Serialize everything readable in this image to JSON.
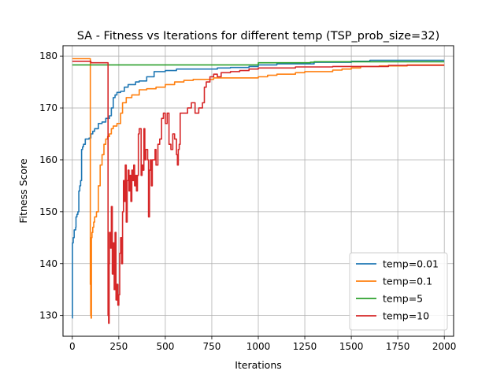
{
  "chart_data": {
    "type": "line",
    "title": "SA - Fitness vs Iterations for different temp (TSP_prob_size=32)",
    "xlabel": "Iterations",
    "ylabel": "Fitness Score",
    "xlim": [
      -50,
      2050
    ],
    "ylim": [
      126,
      182
    ],
    "xticks": [
      0,
      250,
      500,
      750,
      1000,
      1250,
      1500,
      1750,
      2000
    ],
    "yticks": [
      130,
      140,
      150,
      160,
      170,
      180
    ],
    "grid": true,
    "legend_position": "lower-right",
    "series": [
      {
        "name": "temp=0.01",
        "color": "#1f77b4",
        "points": [
          [
            0,
            129.5
          ],
          [
            1,
            144
          ],
          [
            5,
            145
          ],
          [
            10,
            146.5
          ],
          [
            18,
            147
          ],
          [
            20,
            149
          ],
          [
            25,
            149.5
          ],
          [
            30,
            150
          ],
          [
            35,
            154
          ],
          [
            40,
            155
          ],
          [
            45,
            156
          ],
          [
            50,
            162
          ],
          [
            55,
            162.5
          ],
          [
            60,
            163
          ],
          [
            70,
            164
          ],
          [
            90,
            164.2
          ],
          [
            100,
            165
          ],
          [
            110,
            165.5
          ],
          [
            120,
            166
          ],
          [
            140,
            167
          ],
          [
            160,
            167.3
          ],
          [
            180,
            168
          ],
          [
            200,
            168.5
          ],
          [
            210,
            170
          ],
          [
            220,
            172
          ],
          [
            230,
            172.5
          ],
          [
            240,
            173
          ],
          [
            260,
            173.2
          ],
          [
            280,
            174
          ],
          [
            300,
            174.5
          ],
          [
            340,
            175
          ],
          [
            360,
            175.2
          ],
          [
            400,
            176
          ],
          [
            440,
            177
          ],
          [
            500,
            177.2
          ],
          [
            560,
            177.5
          ],
          [
            650,
            177.5
          ],
          [
            760,
            177.5
          ],
          [
            780,
            177.7
          ],
          [
            850,
            177.8
          ],
          [
            950,
            178
          ],
          [
            1000,
            178.3
          ],
          [
            1100,
            178.5
          ],
          [
            1200,
            178.5
          ],
          [
            1300,
            178.8
          ],
          [
            1400,
            178.8
          ],
          [
            1500,
            179
          ],
          [
            1600,
            179.2
          ],
          [
            1700,
            179.2
          ],
          [
            2000,
            179.2
          ]
        ]
      },
      {
        "name": "temp=0.1",
        "color": "#ff7f0e",
        "points": [
          [
            0,
            179.5
          ],
          [
            95,
            179.5
          ],
          [
            97,
            136
          ],
          [
            99,
            130
          ],
          [
            101,
            129.5
          ],
          [
            103,
            145
          ],
          [
            106,
            146
          ],
          [
            110,
            147
          ],
          [
            115,
            148
          ],
          [
            120,
            149
          ],
          [
            130,
            150
          ],
          [
            140,
            155
          ],
          [
            150,
            159
          ],
          [
            160,
            161
          ],
          [
            170,
            163
          ],
          [
            180,
            164
          ],
          [
            190,
            164.5
          ],
          [
            200,
            165
          ],
          [
            210,
            166
          ],
          [
            220,
            166.5
          ],
          [
            240,
            167
          ],
          [
            260,
            169
          ],
          [
            270,
            171
          ],
          [
            290,
            172
          ],
          [
            320,
            172.5
          ],
          [
            360,
            173.5
          ],
          [
            400,
            173.7
          ],
          [
            450,
            174
          ],
          [
            500,
            174.5
          ],
          [
            550,
            175
          ],
          [
            600,
            175.3
          ],
          [
            650,
            175.5
          ],
          [
            760,
            175.8
          ],
          [
            1000,
            176
          ],
          [
            1050,
            176.3
          ],
          [
            1100,
            176.5
          ],
          [
            1200,
            176.8
          ],
          [
            1250,
            177
          ],
          [
            1300,
            177
          ],
          [
            1400,
            177.3
          ],
          [
            1450,
            177.5
          ],
          [
            1500,
            177.7
          ],
          [
            1550,
            178
          ],
          [
            1650,
            178.1
          ],
          [
            1800,
            178.3
          ],
          [
            2000,
            178.3
          ]
        ]
      },
      {
        "name": "temp=5",
        "color": "#2ca02c",
        "points": [
          [
            0,
            178.3
          ],
          [
            400,
            178.3
          ],
          [
            700,
            178.3
          ],
          [
            980,
            178.3
          ],
          [
            1000,
            178.7
          ],
          [
            1200,
            178.7
          ],
          [
            1280,
            178.8
          ],
          [
            1300,
            178.9
          ],
          [
            1500,
            178.9
          ],
          [
            2000,
            178.9
          ]
        ]
      },
      {
        "name": "temp=10",
        "color": "#d62728",
        "points": [
          [
            0,
            179
          ],
          [
            95,
            179
          ],
          [
            100,
            178.7
          ],
          [
            180,
            178.7
          ],
          [
            190,
            178.7
          ],
          [
            192,
            130
          ],
          [
            195,
            128.5
          ],
          [
            198,
            140
          ],
          [
            200,
            146
          ],
          [
            205,
            143
          ],
          [
            210,
            151
          ],
          [
            215,
            138
          ],
          [
            220,
            144
          ],
          [
            225,
            135
          ],
          [
            230,
            146
          ],
          [
            235,
            133
          ],
          [
            240,
            136
          ],
          [
            245,
            132
          ],
          [
            250,
            134
          ],
          [
            255,
            142
          ],
          [
            260,
            145
          ],
          [
            265,
            140
          ],
          [
            270,
            150
          ],
          [
            275,
            156
          ],
          [
            280,
            152
          ],
          [
            285,
            159
          ],
          [
            290,
            148
          ],
          [
            295,
            156
          ],
          [
            300,
            158
          ],
          [
            305,
            154
          ],
          [
            310,
            157
          ],
          [
            315,
            152
          ],
          [
            320,
            158
          ],
          [
            325,
            156
          ],
          [
            330,
            159
          ],
          [
            335,
            155
          ],
          [
            340,
            157
          ],
          [
            345,
            154
          ],
          [
            350,
            157
          ],
          [
            355,
            165
          ],
          [
            360,
            166
          ],
          [
            365,
            166
          ],
          [
            370,
            157
          ],
          [
            375,
            159
          ],
          [
            380,
            158
          ],
          [
            385,
            166
          ],
          [
            390,
            160
          ],
          [
            395,
            162
          ],
          [
            400,
            162
          ],
          [
            405,
            160
          ],
          [
            410,
            149
          ],
          [
            415,
            158
          ],
          [
            420,
            160
          ],
          [
            425,
            155
          ],
          [
            430,
            160
          ],
          [
            440,
            160
          ],
          [
            445,
            162
          ],
          [
            450,
            159
          ],
          [
            460,
            163
          ],
          [
            470,
            164
          ],
          [
            480,
            168
          ],
          [
            490,
            169
          ],
          [
            500,
            167
          ],
          [
            510,
            169
          ],
          [
            520,
            163
          ],
          [
            530,
            162
          ],
          [
            540,
            165
          ],
          [
            550,
            164
          ],
          [
            560,
            161
          ],
          [
            565,
            159
          ],
          [
            570,
            162
          ],
          [
            575,
            163
          ],
          [
            580,
            169
          ],
          [
            600,
            169
          ],
          [
            620,
            170
          ],
          [
            640,
            171
          ],
          [
            660,
            169
          ],
          [
            680,
            170
          ],
          [
            700,
            171
          ],
          [
            710,
            174
          ],
          [
            720,
            175
          ],
          [
            740,
            176
          ],
          [
            760,
            176.5
          ],
          [
            780,
            176
          ],
          [
            800,
            176.8
          ],
          [
            850,
            177
          ],
          [
            900,
            177.2
          ],
          [
            950,
            177.5
          ],
          [
            1000,
            177.7
          ],
          [
            1200,
            177.9
          ],
          [
            1400,
            178
          ],
          [
            1700,
            178.2
          ],
          [
            2000,
            178.2
          ]
        ]
      }
    ]
  }
}
